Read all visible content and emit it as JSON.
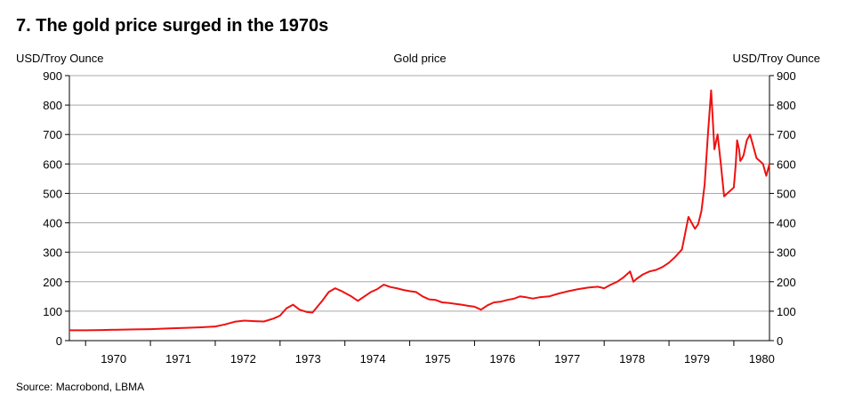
{
  "title": "7.  The gold price surged in the 1970s",
  "source": "Source: Macrobond, LBMA",
  "chart_data": {
    "type": "line",
    "title": "Gold price",
    "ylabel_left": "USD/Troy Ounce",
    "ylabel_right": "USD/Troy Ounce",
    "xlim": [
      1969.75,
      1980.55
    ],
    "ylim": [
      0,
      900
    ],
    "yticks": [
      0,
      100,
      200,
      300,
      400,
      500,
      600,
      700,
      800,
      900
    ],
    "xticks": [
      "1970",
      "1971",
      "1972",
      "1973",
      "1974",
      "1975",
      "1976",
      "1977",
      "1978",
      "1979",
      "1980"
    ],
    "grid": true,
    "series": [
      {
        "name": "",
        "color": "#ee1111",
        "x": [
          1969.75,
          1970.0,
          1970.25,
          1970.5,
          1970.75,
          1971.0,
          1971.25,
          1971.5,
          1971.75,
          1972.0,
          1972.15,
          1972.3,
          1972.45,
          1972.6,
          1972.75,
          1972.9,
          1973.0,
          1973.1,
          1973.2,
          1973.3,
          1973.4,
          1973.5,
          1973.65,
          1973.75,
          1973.85,
          1973.95,
          1974.1,
          1974.2,
          1974.3,
          1974.4,
          1974.5,
          1974.6,
          1974.7,
          1974.8,
          1974.9,
          1975.0,
          1975.1,
          1975.2,
          1975.3,
          1975.4,
          1975.5,
          1975.6,
          1975.7,
          1975.8,
          1975.9,
          1976.0,
          1976.1,
          1976.2,
          1976.3,
          1976.4,
          1976.5,
          1976.6,
          1976.7,
          1976.8,
          1976.9,
          1977.0,
          1977.15,
          1977.3,
          1977.45,
          1977.6,
          1977.75,
          1977.9,
          1978.0,
          1978.1,
          1978.2,
          1978.3,
          1978.4,
          1978.45,
          1978.5,
          1978.6,
          1978.7,
          1978.8,
          1978.9,
          1979.0,
          1979.1,
          1979.2,
          1979.3,
          1979.4,
          1979.45,
          1979.5,
          1979.55,
          1979.6,
          1979.65,
          1979.7,
          1979.75,
          1979.8,
          1979.85,
          1979.9,
          1979.95,
          1980.0,
          1980.03,
          1980.05,
          1980.08,
          1980.1,
          1980.13,
          1980.15,
          1980.2,
          1980.25,
          1980.3,
          1980.35,
          1980.4,
          1980.45,
          1980.5,
          1980.55
        ],
        "values": [
          35,
          35,
          36,
          37,
          38,
          39,
          41,
          43,
          45,
          48,
          55,
          64,
          68,
          66,
          65,
          75,
          85,
          110,
          122,
          105,
          98,
          95,
          135,
          165,
          178,
          168,
          150,
          135,
          150,
          165,
          175,
          190,
          182,
          178,
          172,
          168,
          165,
          150,
          140,
          138,
          130,
          128,
          125,
          122,
          118,
          115,
          105,
          120,
          130,
          132,
          138,
          142,
          150,
          147,
          143,
          147,
          150,
          160,
          168,
          175,
          180,
          183,
          178,
          190,
          200,
          215,
          235,
          200,
          210,
          225,
          235,
          240,
          250,
          265,
          285,
          310,
          420,
          380,
          395,
          440,
          530,
          700,
          850,
          650,
          700,
          600,
          490,
          500,
          510,
          520,
          600,
          680,
          650,
          610,
          620,
          630,
          680,
          700,
          660,
          620,
          610,
          600,
          560,
          600
        ]
      }
    ]
  }
}
